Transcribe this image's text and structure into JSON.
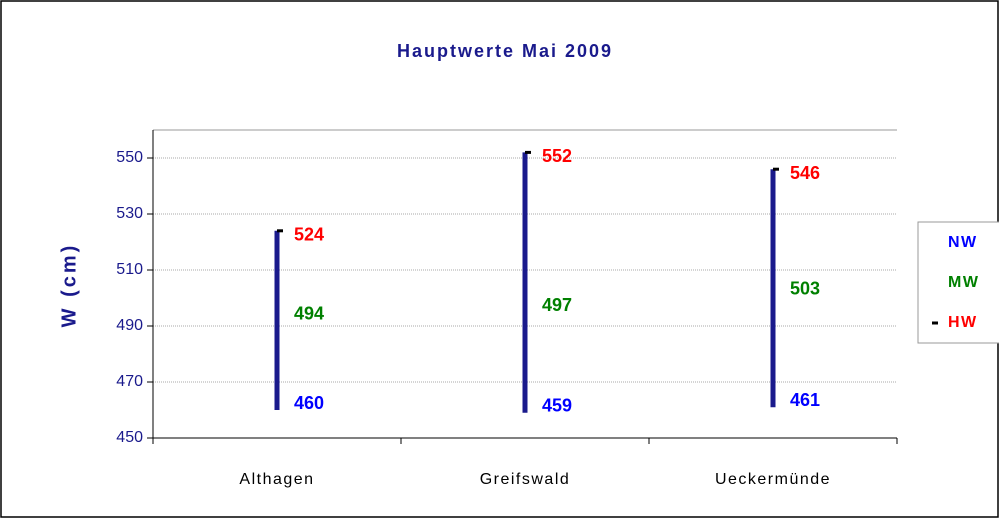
{
  "chart_data": {
    "type": "stock",
    "title": "Hauptwerte Mai 2009",
    "y_label": "W (cm)",
    "categories": [
      "Althagen",
      "Greifswald",
      "Ueckermünde"
    ],
    "series": [
      {
        "name": "NW",
        "color": "#0000ff",
        "values": [
          460,
          459,
          461
        ]
      },
      {
        "name": "MW",
        "color": "#008000",
        "values": [
          494,
          497,
          503
        ]
      },
      {
        "name": "HW",
        "color": "#ff0000",
        "values": [
          524,
          552,
          546
        ]
      }
    ],
    "line_color": "#1a1a8c",
    "ylim": [
      450,
      560
    ],
    "yticks": [
      450,
      470,
      490,
      510,
      530,
      550
    ],
    "grid": true,
    "legend": "right"
  }
}
